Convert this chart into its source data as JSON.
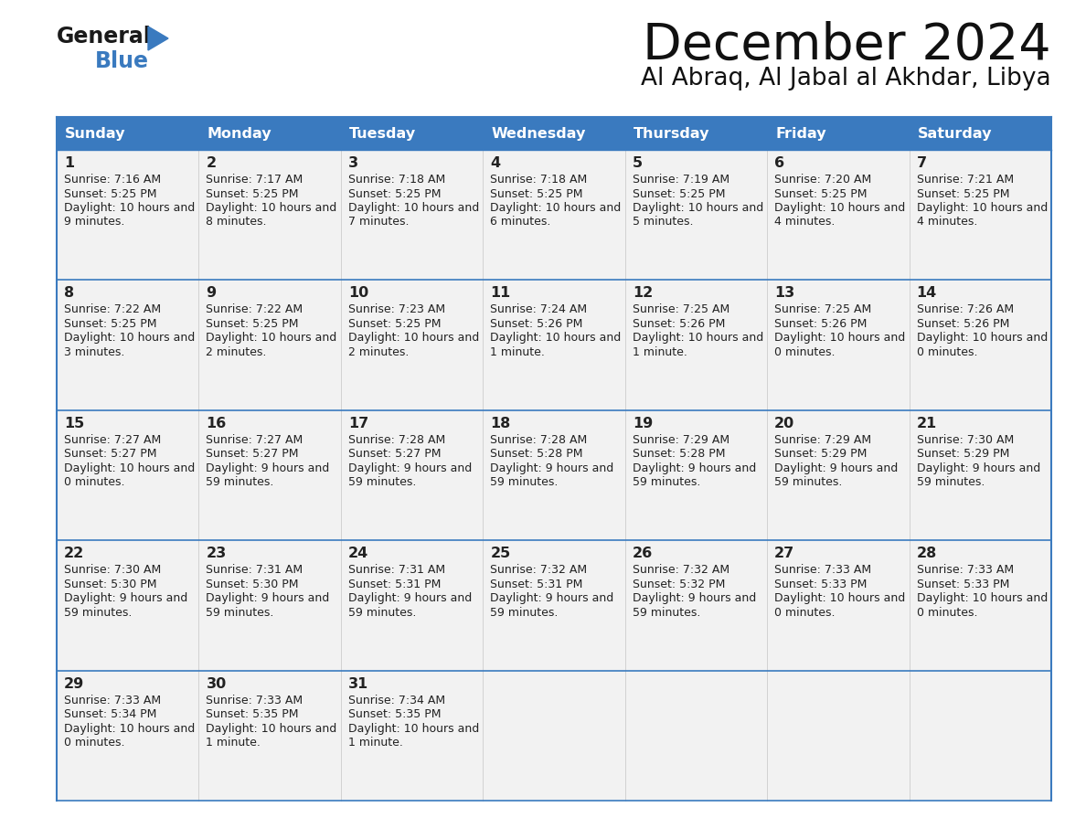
{
  "title": "December 2024",
  "subtitle": "Al Abraq, Al Jabal al Akhdar, Libya",
  "header_color": "#3a7abf",
  "header_text_color": "#ffffff",
  "cell_bg_color": "#f2f2f2",
  "border_color": "#3a7abf",
  "text_color": "#222222",
  "days_of_week": [
    "Sunday",
    "Monday",
    "Tuesday",
    "Wednesday",
    "Thursday",
    "Friday",
    "Saturday"
  ],
  "calendar": [
    [
      {
        "day": 1,
        "sunrise": "7:16 AM",
        "sunset": "5:25 PM",
        "daylight_h": "10 hours",
        "daylight_m": "9 minutes."
      },
      {
        "day": 2,
        "sunrise": "7:17 AM",
        "sunset": "5:25 PM",
        "daylight_h": "10 hours",
        "daylight_m": "8 minutes."
      },
      {
        "day": 3,
        "sunrise": "7:18 AM",
        "sunset": "5:25 PM",
        "daylight_h": "10 hours",
        "daylight_m": "7 minutes."
      },
      {
        "day": 4,
        "sunrise": "7:18 AM",
        "sunset": "5:25 PM",
        "daylight_h": "10 hours",
        "daylight_m": "6 minutes."
      },
      {
        "day": 5,
        "sunrise": "7:19 AM",
        "sunset": "5:25 PM",
        "daylight_h": "10 hours",
        "daylight_m": "5 minutes."
      },
      {
        "day": 6,
        "sunrise": "7:20 AM",
        "sunset": "5:25 PM",
        "daylight_h": "10 hours",
        "daylight_m": "4 minutes."
      },
      {
        "day": 7,
        "sunrise": "7:21 AM",
        "sunset": "5:25 PM",
        "daylight_h": "10 hours",
        "daylight_m": "4 minutes."
      }
    ],
    [
      {
        "day": 8,
        "sunrise": "7:22 AM",
        "sunset": "5:25 PM",
        "daylight_h": "10 hours",
        "daylight_m": "3 minutes."
      },
      {
        "day": 9,
        "sunrise": "7:22 AM",
        "sunset": "5:25 PM",
        "daylight_h": "10 hours",
        "daylight_m": "2 minutes."
      },
      {
        "day": 10,
        "sunrise": "7:23 AM",
        "sunset": "5:25 PM",
        "daylight_h": "10 hours",
        "daylight_m": "2 minutes."
      },
      {
        "day": 11,
        "sunrise": "7:24 AM",
        "sunset": "5:26 PM",
        "daylight_h": "10 hours",
        "daylight_m": "1 minute."
      },
      {
        "day": 12,
        "sunrise": "7:25 AM",
        "sunset": "5:26 PM",
        "daylight_h": "10 hours",
        "daylight_m": "1 minute."
      },
      {
        "day": 13,
        "sunrise": "7:25 AM",
        "sunset": "5:26 PM",
        "daylight_h": "10 hours",
        "daylight_m": "0 minutes."
      },
      {
        "day": 14,
        "sunrise": "7:26 AM",
        "sunset": "5:26 PM",
        "daylight_h": "10 hours",
        "daylight_m": "0 minutes."
      }
    ],
    [
      {
        "day": 15,
        "sunrise": "7:27 AM",
        "sunset": "5:27 PM",
        "daylight_h": "10 hours",
        "daylight_m": "0 minutes."
      },
      {
        "day": 16,
        "sunrise": "7:27 AM",
        "sunset": "5:27 PM",
        "daylight_h": "9 hours",
        "daylight_m": "59 minutes."
      },
      {
        "day": 17,
        "sunrise": "7:28 AM",
        "sunset": "5:27 PM",
        "daylight_h": "9 hours",
        "daylight_m": "59 minutes."
      },
      {
        "day": 18,
        "sunrise": "7:28 AM",
        "sunset": "5:28 PM",
        "daylight_h": "9 hours",
        "daylight_m": "59 minutes."
      },
      {
        "day": 19,
        "sunrise": "7:29 AM",
        "sunset": "5:28 PM",
        "daylight_h": "9 hours",
        "daylight_m": "59 minutes."
      },
      {
        "day": 20,
        "sunrise": "7:29 AM",
        "sunset": "5:29 PM",
        "daylight_h": "9 hours",
        "daylight_m": "59 minutes."
      },
      {
        "day": 21,
        "sunrise": "7:30 AM",
        "sunset": "5:29 PM",
        "daylight_h": "9 hours",
        "daylight_m": "59 minutes."
      }
    ],
    [
      {
        "day": 22,
        "sunrise": "7:30 AM",
        "sunset": "5:30 PM",
        "daylight_h": "9 hours",
        "daylight_m": "59 minutes."
      },
      {
        "day": 23,
        "sunrise": "7:31 AM",
        "sunset": "5:30 PM",
        "daylight_h": "9 hours",
        "daylight_m": "59 minutes."
      },
      {
        "day": 24,
        "sunrise": "7:31 AM",
        "sunset": "5:31 PM",
        "daylight_h": "9 hours",
        "daylight_m": "59 minutes."
      },
      {
        "day": 25,
        "sunrise": "7:32 AM",
        "sunset": "5:31 PM",
        "daylight_h": "9 hours",
        "daylight_m": "59 minutes."
      },
      {
        "day": 26,
        "sunrise": "7:32 AM",
        "sunset": "5:32 PM",
        "daylight_h": "9 hours",
        "daylight_m": "59 minutes."
      },
      {
        "day": 27,
        "sunrise": "7:33 AM",
        "sunset": "5:33 PM",
        "daylight_h": "10 hours",
        "daylight_m": "0 minutes."
      },
      {
        "day": 28,
        "sunrise": "7:33 AM",
        "sunset": "5:33 PM",
        "daylight_h": "10 hours",
        "daylight_m": "0 minutes."
      }
    ],
    [
      {
        "day": 29,
        "sunrise": "7:33 AM",
        "sunset": "5:34 PM",
        "daylight_h": "10 hours",
        "daylight_m": "0 minutes."
      },
      {
        "day": 30,
        "sunrise": "7:33 AM",
        "sunset": "5:35 PM",
        "daylight_h": "10 hours",
        "daylight_m": "1 minute."
      },
      {
        "day": 31,
        "sunrise": "7:34 AM",
        "sunset": "5:35 PM",
        "daylight_h": "10 hours",
        "daylight_m": "1 minute."
      },
      null,
      null,
      null,
      null
    ]
  ]
}
